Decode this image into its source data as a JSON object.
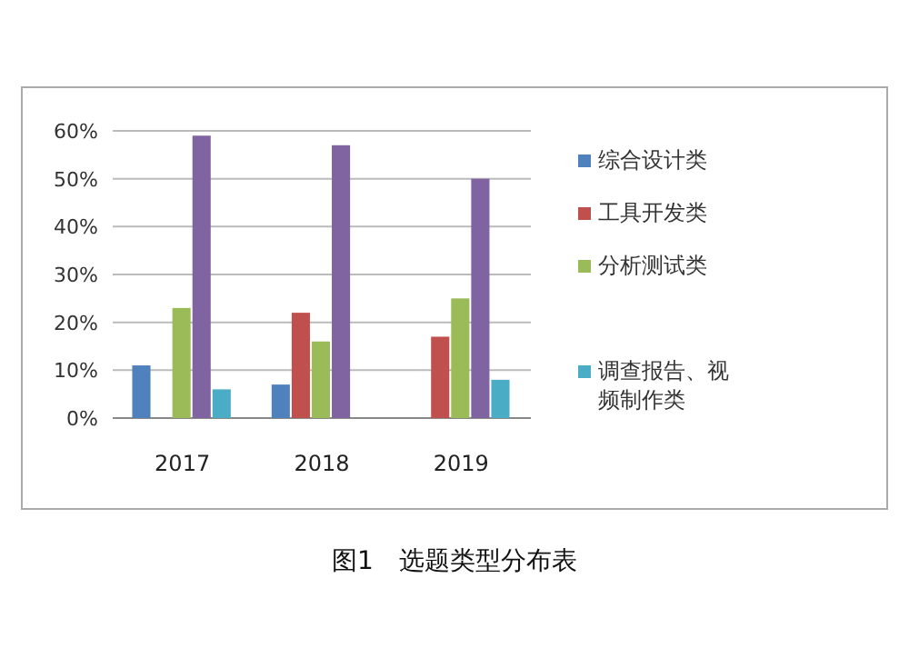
{
  "chart_data": {
    "type": "bar",
    "title": "图1　选题类型分布表",
    "categories": [
      "2017",
      "2018",
      "2019"
    ],
    "series": [
      {
        "name": "综合设计类",
        "color": "#4f81bd",
        "values": [
          11,
          7,
          0
        ]
      },
      {
        "name": "工具开发类",
        "color": "#c0504d",
        "values": [
          0,
          22,
          17
        ]
      },
      {
        "name": "分析测试类",
        "color": "#9bbb59",
        "values": [
          23,
          16,
          25
        ]
      },
      {
        "color": "#8064a2",
        "values": [
          59,
          57,
          50
        ]
      },
      {
        "name": "调查报告、视频制作类",
        "color": "#4bacc6",
        "values": [
          6,
          0,
          8
        ]
      }
    ],
    "ylim": [
      0,
      60
    ],
    "yticks": [
      {
        "value": 0,
        "label": "0%"
      },
      {
        "value": 10,
        "label": "10%"
      },
      {
        "value": 20,
        "label": "20%"
      },
      {
        "value": 30,
        "label": "30%"
      },
      {
        "value": 40,
        "label": "40%"
      },
      {
        "value": 50,
        "label": "50%"
      },
      {
        "value": 60,
        "label": "60%"
      }
    ],
    "grid": "y",
    "legend": "right"
  }
}
